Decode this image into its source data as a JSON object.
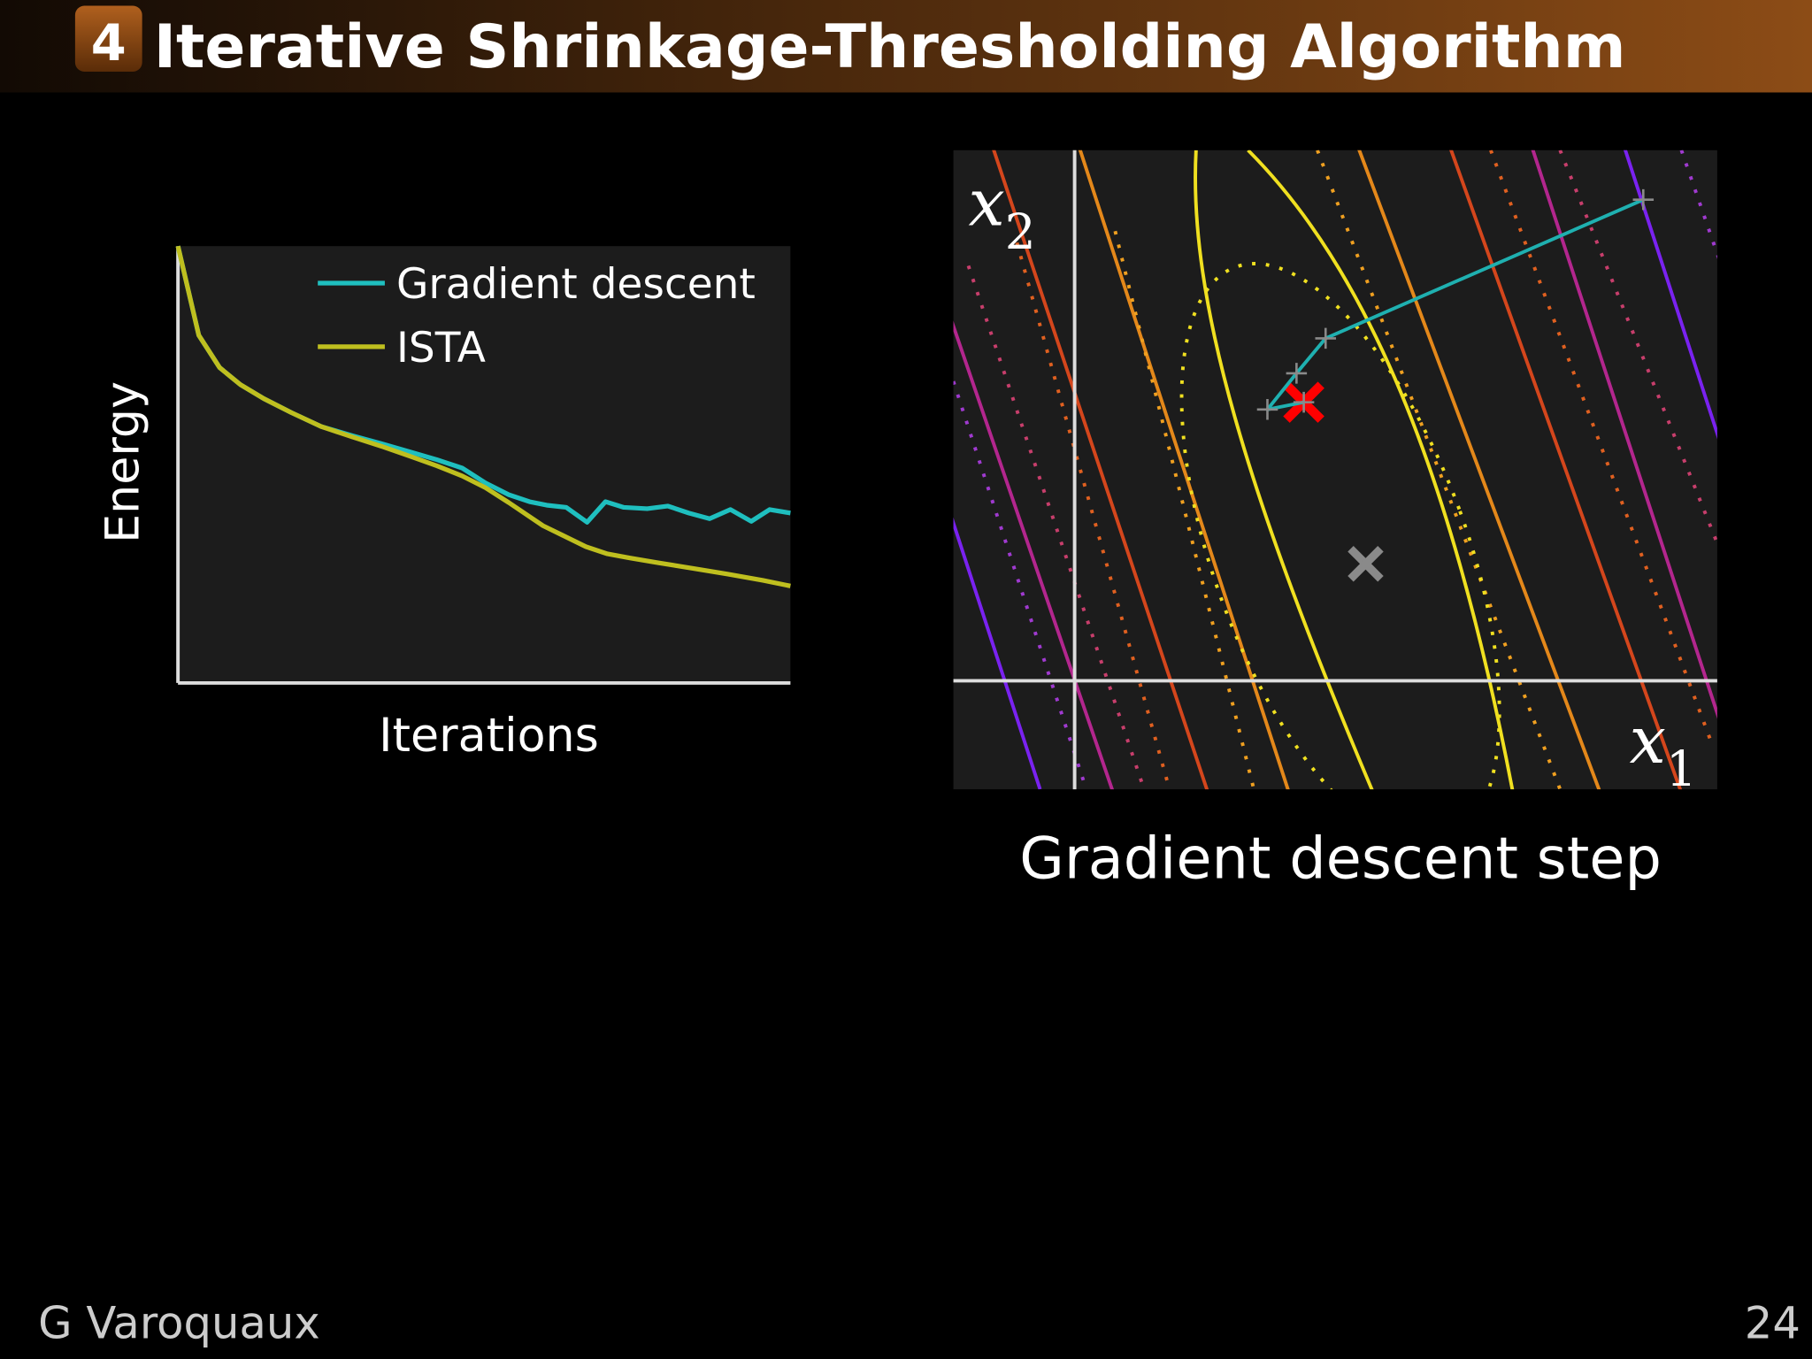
{
  "header": {
    "section_number": "4",
    "title": "Iterative Shrinkage-Thresholding Algorithm"
  },
  "chart_data": [
    {
      "type": "line",
      "xlabel": "Iterations",
      "ylabel": "Energy",
      "xlim": [
        0,
        100
      ],
      "ylim": [
        0,
        100
      ],
      "legend": "upper right",
      "series": [
        {
          "name": "Gradient descent",
          "color": "#1fbfbf",
          "x": [
            0,
            3.4,
            6.8,
            10.2,
            14,
            18.5,
            23.4,
            28.5,
            33.2,
            37.9,
            42.3,
            46.4,
            50.2,
            54,
            57.4,
            60.2,
            63.4,
            66.8,
            69.8,
            72.8,
            76.6,
            80,
            83.4,
            86.8,
            90.2,
            93.6,
            96.6,
            100
          ],
          "values": [
            100,
            79.6,
            72.2,
            68.3,
            65.1,
            61.9,
            58.7,
            56.6,
            54.8,
            52.9,
            51.1,
            49.2,
            45.8,
            43.1,
            41.5,
            40.7,
            40.2,
            36.8,
            41.5,
            40.2,
            39.9,
            40.5,
            38.9,
            37.6,
            39.7,
            37.0,
            39.7,
            38.9
          ]
        },
        {
          "name": "ISTA",
          "color": "#bfbf1f",
          "x": [
            0,
            3.4,
            6.8,
            10.2,
            14,
            18.5,
            23.4,
            28.5,
            33.2,
            37.9,
            42.3,
            46.4,
            50.2,
            54,
            59.6,
            66.6,
            70,
            73.8,
            78.5,
            84.2,
            89.8,
            95.5,
            100
          ],
          "values": [
            100,
            79.6,
            72.2,
            68.3,
            65.1,
            61.9,
            58.7,
            56.3,
            54.2,
            51.9,
            49.7,
            47.4,
            44.7,
            41.3,
            36,
            31.2,
            29.6,
            28.6,
            27.5,
            26.2,
            24.9,
            23.5,
            22.2
          ]
        }
      ]
    },
    {
      "type": "contour",
      "caption": "Gradient descent step",
      "xlabel": {
        "text": "x",
        "subscript": "1"
      },
      "ylabel": {
        "text": "x",
        "subscript": "2"
      },
      "xlim": [
        -1,
        5.3
      ],
      "ylim": [
        -0.9,
        4.4
      ],
      "series": [
        {
          "color": "#1fb0b0",
          "x": [
            4.69,
            2.07,
            1.83,
            1.59,
            1.89
          ],
          "values": [
            3.99,
            2.84,
            2.55,
            2.25,
            2.31
          ]
        }
      ],
      "markers": [
        {
          "x": 1.89,
          "y": 2.31,
          "color": "#ff0000"
        },
        {
          "x": 2.4,
          "y": 0.97,
          "color": "#8a8a8a"
        }
      ]
    }
  ],
  "footer": {
    "author": "G Varoquaux",
    "page": "24"
  }
}
